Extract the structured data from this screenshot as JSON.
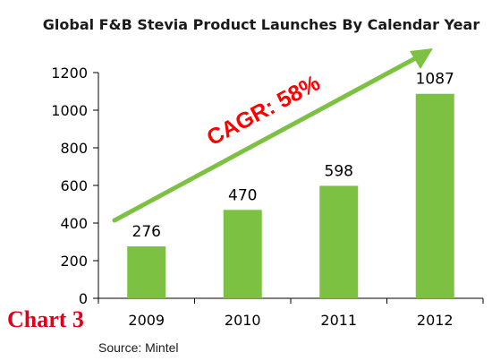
{
  "chart_data": {
    "type": "bar",
    "title": "Global F&B Stevia Product Launches By Calendar Year",
    "categories": [
      "2009",
      "2010",
      "2011",
      "2012"
    ],
    "values": [
      276,
      470,
      598,
      1087
    ],
    "data_labels": [
      "276",
      "470",
      "598",
      "1087"
    ],
    "xlabel": "",
    "ylabel": "",
    "ylim": [
      0,
      1200
    ],
    "yticks": [
      0,
      200,
      400,
      600,
      800,
      1000,
      1200
    ],
    "ytick_labels": [
      "0",
      "200",
      "400",
      "600",
      "800",
      "1000",
      "1200"
    ],
    "grid": false,
    "legend": "none",
    "annotation": {
      "text": "CAGR: 58%",
      "arrow_color": "#7dc142",
      "text_color": "#ff0000"
    },
    "bar_color": "#7dc142"
  },
  "figure_label": "Chart 3",
  "source": "Source:  Mintel"
}
